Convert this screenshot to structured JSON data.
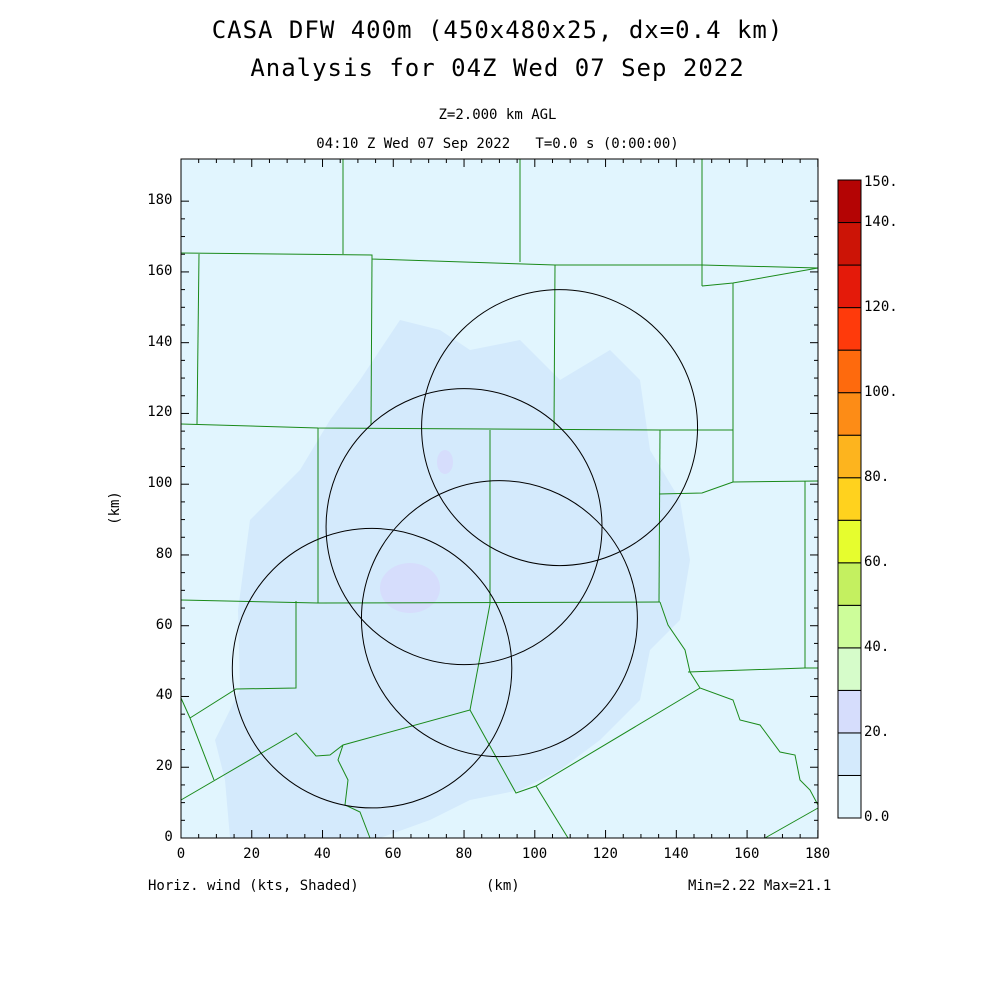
{
  "title_line1": "CASA DFW 400m (450x480x25, dx=0.4 km)",
  "title_line2": "Analysis for 04Z Wed 07 Sep 2022",
  "level": "Z=2.000 km AGL",
  "time": "04:10 Z Wed 07 Sep 2022   T=0.0 s (0:00:00)",
  "x_ticks": [
    "0",
    "20",
    "40",
    "60",
    "80",
    "100",
    "120",
    "140",
    "160",
    "180"
  ],
  "y_ticks": [
    "0",
    "20",
    "40",
    "60",
    "80",
    "100",
    "120",
    "140",
    "160",
    "180"
  ],
  "xlabel": "(km)",
  "ylabel": "(km)",
  "field_label": "Horiz. wind (kts, Shaded)",
  "minmax": "Min=2.22 Max=21.1",
  "colorbar": {
    "labels": [
      "0.0",
      "20.",
      "40.",
      "60.",
      "80.",
      "100.",
      "120.",
      "140.",
      "150."
    ],
    "colors": [
      "#e1f5fe",
      "#d4eafc",
      "#d6ddfc",
      "#d6fcca",
      "#cdfd9a",
      "#c4f060",
      "#e6fd2e",
      "#ffd21e",
      "#fdb41e",
      "#fd8c16",
      "#fe6a0d",
      "#ff3a0b",
      "#e41a0a",
      "#cc1406",
      "#b40404"
    ]
  },
  "radars": [
    {
      "x": 107,
      "y": 116,
      "r": 39
    },
    {
      "x": 80,
      "y": 88,
      "r": 39
    },
    {
      "x": 90,
      "y": 62,
      "r": 39
    },
    {
      "x": 54,
      "y": 48,
      "r": 39.5
    }
  ]
}
